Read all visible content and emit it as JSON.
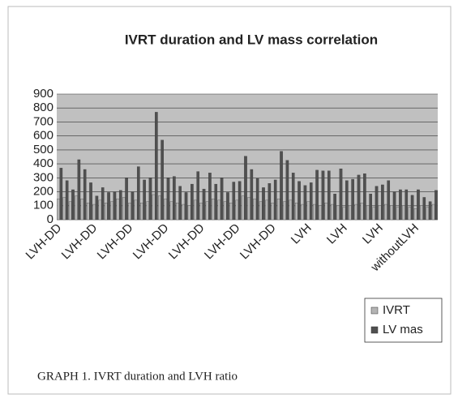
{
  "chart_data": {
    "type": "bar",
    "title": "IVRT duration and LV mass correlation",
    "caption": "GRAPH 1. IVRT duration and LVH ratio",
    "categories": [
      "LVH-DD",
      null,
      null,
      null,
      null,
      null,
      "LVH-DD",
      null,
      null,
      null,
      null,
      null,
      "LVH-DD",
      null,
      null,
      null,
      null,
      null,
      "LVH-DD",
      null,
      null,
      null,
      null,
      null,
      "LVH-DD",
      null,
      null,
      null,
      null,
      null,
      "LVH-DD",
      null,
      null,
      null,
      null,
      null,
      "LVH-DD",
      null,
      null,
      null,
      null,
      null,
      "LVH",
      null,
      null,
      null,
      null,
      null,
      "LVH",
      null,
      null,
      null,
      null,
      null,
      "LVH",
      null,
      null,
      null,
      null,
      null,
      "withoutLVH",
      null,
      null,
      null
    ],
    "series": [
      {
        "name": "IVRT",
        "color": "#b4b4b4",
        "values": [
          150,
          160,
          130,
          170,
          150,
          120,
          110,
          140,
          120,
          130,
          150,
          160,
          120,
          140,
          120,
          130,
          180,
          170,
          150,
          130,
          120,
          110,
          100,
          140,
          120,
          130,
          150,
          140,
          130,
          120,
          140,
          170,
          160,
          150,
          130,
          140,
          120,
          150,
          130,
          140,
          120,
          110,
          130,
          110,
          100,
          120,
          110,
          100,
          90,
          100,
          110,
          120,
          100,
          90,
          100,
          110,
          100,
          90,
          100,
          90,
          80,
          100,
          90,
          110
        ]
      },
      {
        "name": "LV mas",
        "color": "#505050",
        "values": [
          370,
          280,
          215,
          430,
          360,
          265,
          170,
          230,
          195,
          200,
          210,
          300,
          200,
          380,
          285,
          300,
          770,
          570,
          300,
          310,
          240,
          195,
          255,
          345,
          220,
          335,
          255,
          300,
          195,
          270,
          275,
          455,
          360,
          295,
          230,
          260,
          285,
          490,
          425,
          335,
          275,
          245,
          265,
          355,
          350,
          350,
          185,
          365,
          280,
          290,
          320,
          330,
          185,
          240,
          250,
          280,
          200,
          215,
          215,
          175,
          215,
          160,
          130,
          210
        ]
      }
    ],
    "ylim": [
      0,
      900
    ],
    "yticks": [
      0,
      100,
      200,
      300,
      400,
      500,
      600,
      700,
      800,
      900
    ],
    "grid": true,
    "legend": "bottom-right"
  }
}
